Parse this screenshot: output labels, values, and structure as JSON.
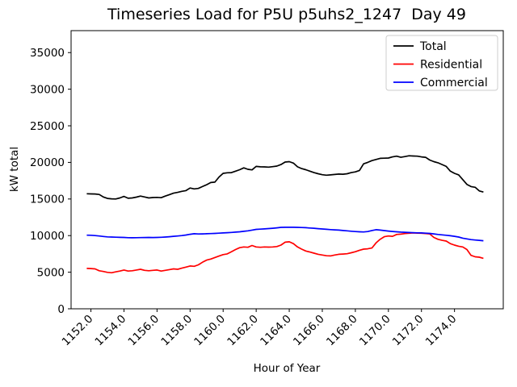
{
  "figure": {
    "title": "Timeseries Load for P5U p5uhs2_1247  Day 49"
  },
  "chart_data": {
    "type": "line",
    "title": "Timeseries Load for P5U p5uhs2_1247  Day 49",
    "xlabel": "Hour of Year",
    "ylabel": "kW total",
    "xlim": [
      1150.8,
      1176.95
    ],
    "ylim": [
      0,
      38000
    ],
    "grid": false,
    "legend_position": "upper right",
    "legend_entries": [
      "Total",
      "Residential",
      "Commercial"
    ],
    "xticks": [
      "1152.0",
      "1154.0",
      "1156.0",
      "1158.0",
      "1160.0",
      "1162.0",
      "1164.0",
      "1166.0",
      "1168.0",
      "1170.0",
      "1172.0",
      "1174.0"
    ],
    "yticks": [
      0,
      5000,
      10000,
      15000,
      20000,
      25000,
      30000,
      35000
    ],
    "x": [
      1151.75,
      1152.0,
      1152.25,
      1152.5,
      1152.75,
      1153.0,
      1153.25,
      1153.5,
      1153.75,
      1154.0,
      1154.25,
      1154.5,
      1154.75,
      1155.0,
      1155.25,
      1155.5,
      1155.75,
      1156.0,
      1156.25,
      1156.5,
      1156.75,
      1157.0,
      1157.25,
      1157.5,
      1157.75,
      1158.0,
      1158.25,
      1158.5,
      1158.75,
      1159.0,
      1159.25,
      1159.5,
      1159.75,
      1160.0,
      1160.25,
      1160.5,
      1160.75,
      1161.0,
      1161.25,
      1161.5,
      1161.75,
      1162.0,
      1162.25,
      1162.5,
      1162.75,
      1163.0,
      1163.25,
      1163.5,
      1163.75,
      1164.0,
      1164.25,
      1164.5,
      1164.75,
      1165.0,
      1165.25,
      1165.5,
      1165.75,
      1166.0,
      1166.25,
      1166.5,
      1166.75,
      1167.0,
      1167.25,
      1167.5,
      1167.75,
      1168.0,
      1168.25,
      1168.5,
      1168.75,
      1169.0,
      1169.25,
      1169.5,
      1169.75,
      1170.0,
      1170.25,
      1170.5,
      1170.75,
      1171.0,
      1171.25,
      1171.5,
      1171.75,
      1172.0,
      1172.25,
      1172.5,
      1172.75,
      1173.0,
      1173.25,
      1173.5,
      1173.75,
      1174.0,
      1174.25,
      1174.5,
      1174.75,
      1175.0,
      1175.25,
      1175.5,
      1175.75
    ],
    "series": [
      {
        "name": "Total",
        "color": "#000000",
        "values": [
          15720,
          15700,
          15680,
          15620,
          15280,
          15080,
          15020,
          15000,
          15150,
          15350,
          15100,
          15150,
          15250,
          15400,
          15280,
          15150,
          15200,
          15220,
          15180,
          15400,
          15600,
          15800,
          15900,
          16050,
          16150,
          16500,
          16380,
          16450,
          16700,
          16950,
          17250,
          17300,
          18000,
          18500,
          18580,
          18600,
          18800,
          19000,
          19250,
          19050,
          18980,
          19450,
          19400,
          19380,
          19350,
          19420,
          19500,
          19700,
          20050,
          20100,
          19900,
          19400,
          19150,
          19000,
          18800,
          18600,
          18450,
          18320,
          18250,
          18300,
          18350,
          18400,
          18380,
          18450,
          18600,
          18700,
          18900,
          19800,
          20000,
          20250,
          20400,
          20550,
          20580,
          20600,
          20750,
          20850,
          20700,
          20800,
          20900,
          20870,
          20850,
          20750,
          20700,
          20320,
          20100,
          19950,
          19700,
          19450,
          18800,
          18500,
          18300,
          17650,
          17000,
          16700,
          16600,
          16100,
          15950
        ]
      },
      {
        "name": "Residential",
        "color": "#ff0000",
        "values": [
          5520,
          5500,
          5450,
          5200,
          5100,
          4980,
          4920,
          5050,
          5150,
          5300,
          5150,
          5200,
          5300,
          5400,
          5250,
          5200,
          5250,
          5300,
          5150,
          5250,
          5350,
          5450,
          5400,
          5550,
          5700,
          5850,
          5800,
          6000,
          6350,
          6650,
          6800,
          7000,
          7200,
          7400,
          7500,
          7800,
          8100,
          8350,
          8450,
          8400,
          8650,
          8450,
          8400,
          8450,
          8430,
          8450,
          8500,
          8700,
          9100,
          9150,
          8900,
          8450,
          8150,
          7900,
          7750,
          7600,
          7450,
          7350,
          7250,
          7230,
          7350,
          7450,
          7480,
          7520,
          7650,
          7800,
          8000,
          8150,
          8200,
          8300,
          9000,
          9500,
          9850,
          9950,
          9900,
          10150,
          10200,
          10280,
          10320,
          10360,
          10330,
          10320,
          10280,
          10230,
          9750,
          9500,
          9350,
          9250,
          8900,
          8700,
          8550,
          8450,
          8100,
          7300,
          7100,
          7050,
          6900
        ]
      },
      {
        "name": "Commercial",
        "color": "#0000ff",
        "values": [
          10060,
          10050,
          10000,
          9950,
          9880,
          9830,
          9800,
          9780,
          9760,
          9750,
          9720,
          9700,
          9710,
          9730,
          9740,
          9750,
          9740,
          9750,
          9770,
          9800,
          9850,
          9900,
          9950,
          10000,
          10080,
          10180,
          10260,
          10220,
          10230,
          10260,
          10280,
          10300,
          10330,
          10360,
          10400,
          10430,
          10470,
          10520,
          10580,
          10650,
          10750,
          10850,
          10880,
          10920,
          10960,
          11000,
          11060,
          11120,
          11140,
          11150,
          11140,
          11130,
          11100,
          11080,
          11040,
          11000,
          10950,
          10900,
          10860,
          10820,
          10780,
          10750,
          10700,
          10650,
          10600,
          10550,
          10520,
          10500,
          10550,
          10700,
          10800,
          10750,
          10680,
          10620,
          10560,
          10520,
          10480,
          10450,
          10420,
          10400,
          10380,
          10360,
          10330,
          10300,
          10230,
          10150,
          10100,
          10050,
          9980,
          9900,
          9800,
          9650,
          9550,
          9450,
          9400,
          9350,
          9300
        ]
      }
    ]
  }
}
